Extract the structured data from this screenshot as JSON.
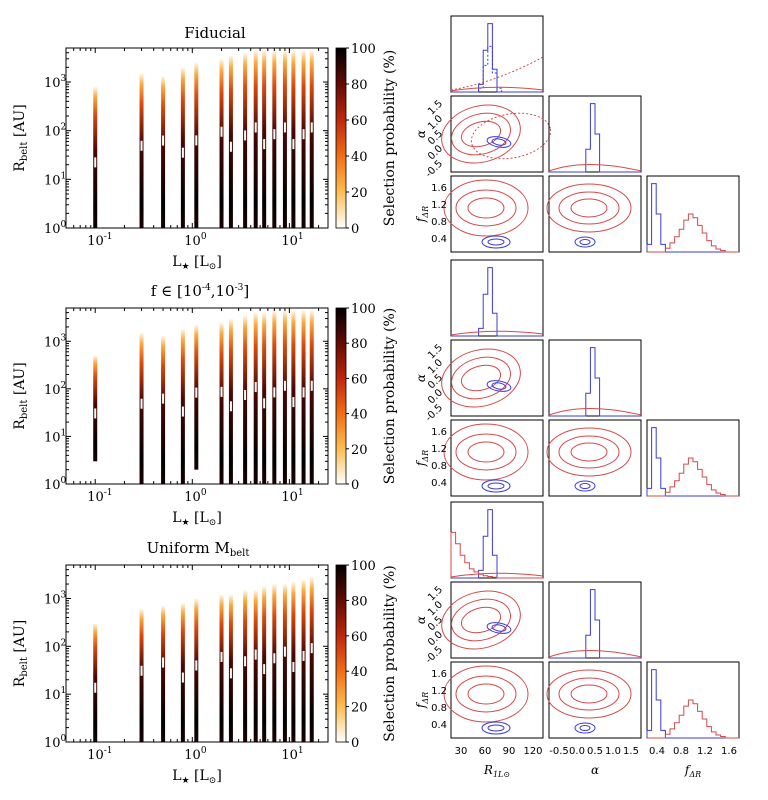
{
  "chart_data": [
    {
      "type": "heatmap",
      "panel": "heatmap-fiducial",
      "title": "Fiducial",
      "xlabel": "L★ [L⊙]",
      "ylabel": "Rbelt [AU]",
      "xscale": "log",
      "yscale": "log",
      "xlim": [
        0.05,
        25
      ],
      "ylim": [
        1,
        5000
      ],
      "xticks": [
        "10^-1",
        "10^0",
        "10^1"
      ],
      "yticks": [
        "10^0",
        "10^1",
        "10^2",
        "10^3"
      ],
      "colorbar": {
        "label": "Selection probability (%)",
        "ticks": [
          0,
          20,
          40,
          60,
          80,
          100
        ],
        "range": [
          0,
          100
        ]
      },
      "stripes": [
        {
          "L": 0.1,
          "rmin": 1,
          "rmax": 800
        },
        {
          "L": 0.3,
          "rmin": 1,
          "rmax": 1500
        },
        {
          "L": 0.5,
          "rmin": 1,
          "rmax": 1300
        },
        {
          "L": 0.8,
          "rmin": 1,
          "rmax": 2000
        },
        {
          "L": 1.1,
          "rmin": 1,
          "rmax": 2500
        },
        {
          "L": 2.0,
          "rmin": 1,
          "rmax": 3000
        },
        {
          "L": 2.5,
          "rmin": 1,
          "rmax": 3500
        },
        {
          "L": 3.5,
          "rmin": 1,
          "rmax": 4000
        },
        {
          "L": 4.5,
          "rmin": 1,
          "rmax": 4500
        },
        {
          "L": 5.5,
          "rmin": 1,
          "rmax": 4500
        },
        {
          "L": 7.0,
          "rmin": 1,
          "rmax": 4500
        },
        {
          "L": 9.0,
          "rmin": 1,
          "rmax": 4500
        },
        {
          "L": 11.0,
          "rmin": 1,
          "rmax": 4500
        },
        {
          "L": 14.0,
          "rmin": 1,
          "rmax": 4500
        },
        {
          "L": 17.0,
          "rmin": 1,
          "rmax": 4500
        }
      ]
    },
    {
      "type": "heatmap",
      "panel": "heatmap-f-range",
      "title": "f ∈ [10-4,10-3]",
      "xlabel": "L★ [L⊙]",
      "ylabel": "Rbelt [AU]",
      "xscale": "log",
      "yscale": "log",
      "xlim": [
        0.05,
        25
      ],
      "ylim": [
        1,
        5000
      ],
      "xticks": [
        "10^-1",
        "10^0",
        "10^1"
      ],
      "yticks": [
        "10^0",
        "10^1",
        "10^2",
        "10^3"
      ],
      "colorbar": {
        "label": "Selection probability (%)",
        "ticks": [
          0,
          20,
          40,
          60,
          80,
          100
        ],
        "range": [
          0,
          100
        ]
      },
      "stripes": [
        {
          "L": 0.1,
          "rmin": 3,
          "rmax": 500
        },
        {
          "L": 0.3,
          "rmin": 1,
          "rmax": 1500
        },
        {
          "L": 0.5,
          "rmin": 1,
          "rmax": 1300
        },
        {
          "L": 0.8,
          "rmin": 1,
          "rmax": 1800
        },
        {
          "L": 1.1,
          "rmin": 2,
          "rmax": 2200
        },
        {
          "L": 2.0,
          "rmin": 1,
          "rmax": 2500
        },
        {
          "L": 2.5,
          "rmin": 1,
          "rmax": 3000
        },
        {
          "L": 3.5,
          "rmin": 1,
          "rmax": 3500
        },
        {
          "L": 4.5,
          "rmin": 1,
          "rmax": 4000
        },
        {
          "L": 5.5,
          "rmin": 1,
          "rmax": 4000
        },
        {
          "L": 7.0,
          "rmin": 1,
          "rmax": 4500
        },
        {
          "L": 9.0,
          "rmin": 1,
          "rmax": 4500
        },
        {
          "L": 11.0,
          "rmin": 1,
          "rmax": 4500
        },
        {
          "L": 14.0,
          "rmin": 1,
          "rmax": 4500
        },
        {
          "L": 17.0,
          "rmin": 1,
          "rmax": 4500
        }
      ]
    },
    {
      "type": "heatmap",
      "panel": "heatmap-uniform",
      "title": "Uniform Mbelt",
      "xlabel": "L★ [L⊙]",
      "ylabel": "Rbelt [AU]",
      "xscale": "log",
      "yscale": "log",
      "xlim": [
        0.05,
        25
      ],
      "ylim": [
        1,
        5000
      ],
      "xticks": [
        "10^-1",
        "10^0",
        "10^1"
      ],
      "yticks": [
        "10^0",
        "10^1",
        "10^2",
        "10^3"
      ],
      "colorbar": {
        "label": "Selection probability (%)",
        "ticks": [
          0,
          20,
          40,
          60,
          80,
          100
        ],
        "range": [
          0,
          100
        ]
      },
      "stripes": [
        {
          "L": 0.1,
          "rmin": 1,
          "rmax": 300
        },
        {
          "L": 0.3,
          "rmin": 1,
          "rmax": 600
        },
        {
          "L": 0.5,
          "rmin": 1,
          "rmax": 700
        },
        {
          "L": 0.8,
          "rmin": 1,
          "rmax": 800
        },
        {
          "L": 1.1,
          "rmin": 1,
          "rmax": 1000
        },
        {
          "L": 2.0,
          "rmin": 1,
          "rmax": 1200
        },
        {
          "L": 2.5,
          "rmin": 1,
          "rmax": 1200
        },
        {
          "L": 3.5,
          "rmin": 1,
          "rmax": 1500
        },
        {
          "L": 4.5,
          "rmin": 1,
          "rmax": 1500
        },
        {
          "L": 5.5,
          "rmin": 1,
          "rmax": 1800
        },
        {
          "L": 7.0,
          "rmin": 1,
          "rmax": 2000
        },
        {
          "L": 9.0,
          "rmin": 1,
          "rmax": 2000
        },
        {
          "L": 11.0,
          "rmin": 1,
          "rmax": 2200
        },
        {
          "L": 14.0,
          "rmin": 1,
          "rmax": 2500
        },
        {
          "L": 17.0,
          "rmin": 1,
          "rmax": 2800
        }
      ]
    },
    {
      "type": "corner",
      "panels": [
        "corner-fiducial",
        "corner-f-range",
        "corner-uniform"
      ],
      "parameters": [
        {
          "name": "R1L⊙",
          "range": [
            0,
            150
          ],
          "ticks": [
            30,
            60,
            90,
            120
          ]
        },
        {
          "name": "α",
          "range": [
            -0.75,
            1.75
          ],
          "ticks": [
            -0.5,
            0.0,
            0.5,
            1.0,
            1.5
          ]
        },
        {
          "name": "fΔR",
          "range": [
            0.15,
            1.95
          ],
          "ticks": [
            0.4,
            0.8,
            1.2,
            1.6
          ]
        }
      ],
      "series": [
        {
          "name": "input (blue)",
          "color": "#3b3bdb",
          "R1L_peak": 68,
          "alpha_peak": 0.25,
          "fdR_peak": 0.3
        },
        {
          "name": "posterior (red)",
          "color": "#d24b4b",
          "R1L_peak": 60,
          "alpha_peak": 0.5,
          "fdR_peak": 1.0
        }
      ]
    }
  ],
  "labels": {
    "ytick_labels": [
      "10",
      "10",
      "10",
      "10"
    ],
    "ytick_exps": [
      "0",
      "1",
      "2",
      "3"
    ],
    "xtick_labels": [
      "10",
      "10",
      "10"
    ],
    "xtick_exps": [
      "-1",
      "0",
      "1"
    ],
    "cbar_ticks": [
      "0",
      "20",
      "40",
      "60",
      "80",
      "100"
    ],
    "cbar_label": "Selection probability (%)",
    "ylabel_main": "R",
    "ylabel_sub": "belt",
    "ylabel_unit": " [AU]",
    "xlabel_main": "L",
    "xlabel_star": "★",
    "xlabel_unit_open": " [L",
    "xlabel_unit_sun": "⊙",
    "xlabel_unit_close": "]",
    "title_fiducial": "Fiducial",
    "title_frange_main": "f ∈ [10",
    "title_frange_exp1": "-4",
    "title_frange_mid": ",10",
    "title_frange_exp2": "-3",
    "title_frange_end": "]",
    "title_uniform_main": "Uniform M",
    "title_uniform_sub": "belt",
    "corner_alpha": "α",
    "corner_fdr": "f",
    "corner_fdr_sub": "ΔR",
    "corner_r1l": "R",
    "corner_r1l_sub": "1L⊙",
    "corner_xticks_r": [
      "30",
      "60",
      "90",
      "120"
    ],
    "corner_xticks_a": [
      "-0.5",
      "0.0",
      "0.5",
      "1.0",
      "1.5"
    ],
    "corner_xticks_f": [
      "0.4",
      "0.8",
      "1.2",
      "1.6"
    ],
    "corner_yticks_a": [
      "-0.5",
      "0.0",
      "0.5",
      "1.0",
      "1.5"
    ],
    "corner_yticks_f": [
      "0.4",
      "0.8",
      "1.2",
      "1.6"
    ]
  }
}
